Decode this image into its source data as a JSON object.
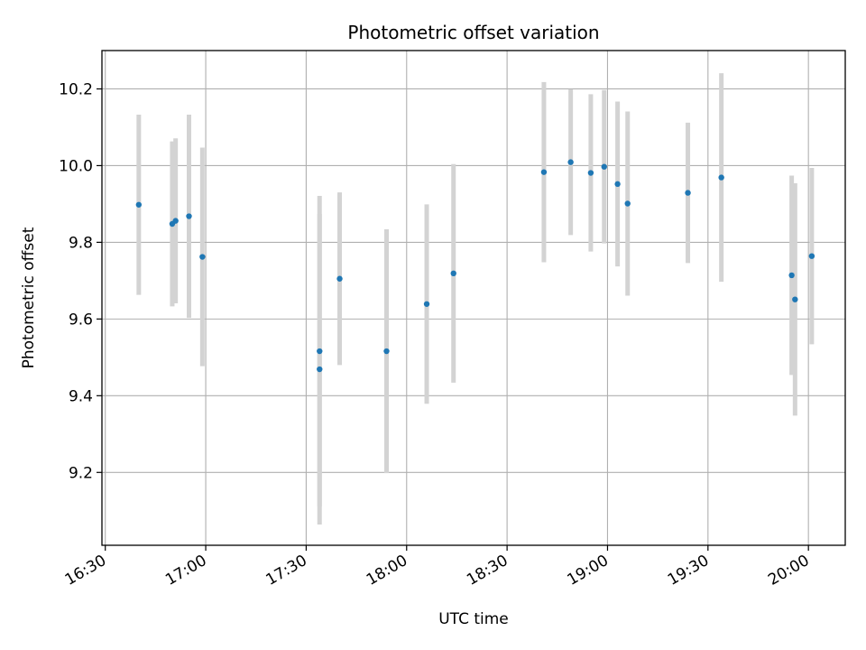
{
  "chart_data": {
    "type": "scatter",
    "title": "Photometric offset variation",
    "xlabel": "UTC time",
    "ylabel": "Photometric offset",
    "x_tick_labels": [
      "16:30",
      "17:00",
      "17:30",
      "18:00",
      "18:30",
      "19:00",
      "19:30",
      "20:00"
    ],
    "y_tick_labels": [
      "9.2",
      "9.4",
      "9.6",
      "9.8",
      "10.0",
      "10.2"
    ],
    "xlim": [
      "16:29",
      "20:11"
    ],
    "ylim": [
      9.01,
      10.3
    ],
    "grid": true,
    "colors": {
      "marker": "#1f77b4",
      "errorbar": "#d3d3d3",
      "grid": "#b0b0b0"
    },
    "points": [
      {
        "x": "16:40",
        "y": 9.898,
        "err": 0.235
      },
      {
        "x": "16:50",
        "y": 9.848,
        "err": 0.215
      },
      {
        "x": "16:51",
        "y": 9.856,
        "err": 0.215
      },
      {
        "x": "16:55",
        "y": 9.868,
        "err": 0.265
      },
      {
        "x": "16:59",
        "y": 9.762,
        "err": 0.285
      },
      {
        "x": "17:34",
        "y": 9.469,
        "err": 0.405
      },
      {
        "x": "17:34",
        "y": 9.516,
        "err": 0.405
      },
      {
        "x": "17:40",
        "y": 9.705,
        "err": 0.225
      },
      {
        "x": "17:54",
        "y": 9.516,
        "err": 0.318
      },
      {
        "x": "18:06",
        "y": 9.639,
        "err": 0.26
      },
      {
        "x": "18:14",
        "y": 9.719,
        "err": 0.285
      },
      {
        "x": "18:41",
        "y": 9.983,
        "err": 0.235
      },
      {
        "x": "18:49",
        "y": 10.009,
        "err": 0.19
      },
      {
        "x": "18:55",
        "y": 9.981,
        "err": 0.205
      },
      {
        "x": "18:59",
        "y": 9.997,
        "err": 0.2
      },
      {
        "x": "19:03",
        "y": 9.952,
        "err": 0.215
      },
      {
        "x": "19:06",
        "y": 9.901,
        "err": 0.24
      },
      {
        "x": "19:24",
        "y": 9.929,
        "err": 0.183
      },
      {
        "x": "19:34",
        "y": 9.969,
        "err": 0.272
      },
      {
        "x": "19:55",
        "y": 9.714,
        "err": 0.26
      },
      {
        "x": "19:56",
        "y": 9.651,
        "err": 0.303
      },
      {
        "x": "20:01",
        "y": 9.764,
        "err": 0.23
      }
    ]
  }
}
